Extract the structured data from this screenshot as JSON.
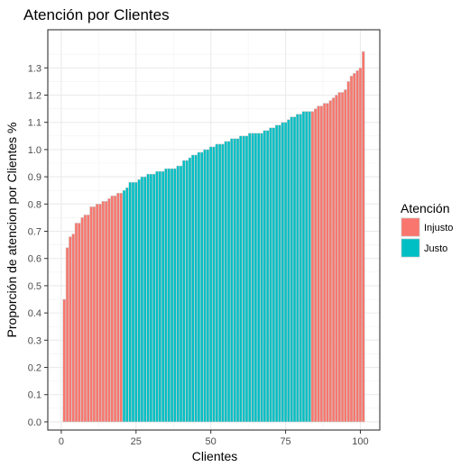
{
  "chart_data": {
    "type": "bar",
    "title": "Atención por Clientes",
    "xlabel": "Clientes",
    "ylabel": "Proporción de atencion por Clientes %",
    "x_ticks": [
      0,
      25,
      50,
      75,
      100
    ],
    "y_ticks": [
      0.0,
      0.1,
      0.2,
      0.3,
      0.4,
      0.5,
      0.6,
      0.7,
      0.8,
      0.9,
      1.0,
      1.1,
      1.2,
      1.3
    ],
    "y_tick_labels": [
      "0.0",
      "0.1",
      "0.2",
      "0.3",
      "0.4",
      "0.5",
      "0.6",
      "0.7",
      "0.8",
      "0.9",
      "1.0",
      "1.1",
      "1.2",
      "1.3"
    ],
    "xlim": [
      -4.5,
      106.5
    ],
    "ylim": [
      -0.03,
      1.44
    ],
    "grid": true,
    "legend": {
      "title": "Atención",
      "placement": "right",
      "entries": [
        {
          "label": "Injusto",
          "color": "#F8766D"
        },
        {
          "label": "Justo",
          "color": "#00BFC4"
        }
      ]
    },
    "bar_outline_color": "#cccccc",
    "series": [
      {
        "name": "Injusto",
        "color": "#F8766D",
        "x": [
          1,
          2,
          3,
          4,
          5,
          6,
          7,
          8,
          9,
          10,
          11,
          12,
          13,
          14,
          15,
          16,
          17,
          18,
          19,
          20
        ],
        "values": [
          0.45,
          0.64,
          0.68,
          0.69,
          0.73,
          0.73,
          0.75,
          0.76,
          0.76,
          0.79,
          0.79,
          0.8,
          0.8,
          0.81,
          0.81,
          0.82,
          0.83,
          0.83,
          0.84,
          0.84
        ]
      },
      {
        "name": "Justo",
        "color": "#00BFC4",
        "x": [
          21,
          22,
          23,
          24,
          25,
          26,
          27,
          28,
          29,
          30,
          31,
          32,
          33,
          34,
          35,
          36,
          37,
          38,
          39,
          40,
          41,
          42,
          43,
          44,
          45,
          46,
          47,
          48,
          49,
          50,
          51,
          52,
          53,
          54,
          55,
          56,
          57,
          58,
          59,
          60,
          61,
          62,
          63,
          64,
          65,
          66,
          67,
          68,
          69,
          70,
          71,
          72,
          73,
          74,
          75,
          76,
          77,
          78,
          79,
          80,
          81,
          82,
          83
        ],
        "values": [
          0.85,
          0.86,
          0.88,
          0.88,
          0.88,
          0.89,
          0.9,
          0.9,
          0.91,
          0.91,
          0.91,
          0.92,
          0.92,
          0.92,
          0.93,
          0.93,
          0.93,
          0.93,
          0.94,
          0.94,
          0.96,
          0.96,
          0.97,
          0.98,
          0.98,
          0.99,
          0.99,
          1.0,
          1.0,
          1.01,
          1.01,
          1.02,
          1.02,
          1.02,
          1.03,
          1.03,
          1.04,
          1.04,
          1.04,
          1.05,
          1.05,
          1.05,
          1.06,
          1.06,
          1.06,
          1.06,
          1.06,
          1.07,
          1.07,
          1.08,
          1.08,
          1.09,
          1.09,
          1.1,
          1.1,
          1.11,
          1.12,
          1.12,
          1.13,
          1.13,
          1.14,
          1.14,
          1.14
        ]
      },
      {
        "name": "Injusto",
        "color": "#F8766D",
        "x": [
          84,
          85,
          86,
          87,
          88,
          89,
          90,
          91,
          92,
          93,
          94,
          95,
          96,
          97,
          98,
          99,
          100,
          101
        ],
        "values": [
          1.14,
          1.15,
          1.16,
          1.16,
          1.17,
          1.17,
          1.18,
          1.19,
          1.2,
          1.21,
          1.21,
          1.22,
          1.25,
          1.27,
          1.28,
          1.29,
          1.3,
          1.36
        ]
      }
    ]
  }
}
